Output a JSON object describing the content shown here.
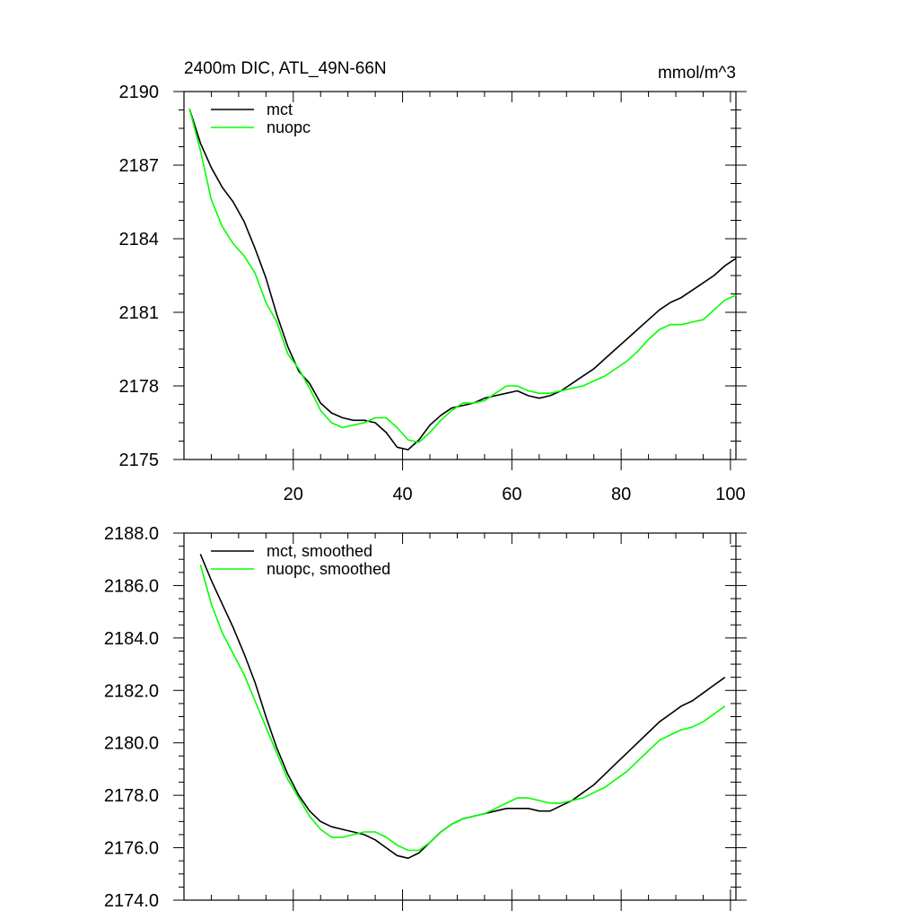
{
  "chart_data": [
    {
      "type": "line",
      "title": "2400m DIC, ATL_49N-66N",
      "units": "mmol/m^3",
      "xlim": [
        0,
        101
      ],
      "ylim": [
        2175,
        2190
      ],
      "xticks": [
        20,
        40,
        60,
        80,
        100
      ],
      "yticks": [
        2175,
        2178,
        2181,
        2184,
        2187,
        2190
      ],
      "ytick_labels": [
        "2175",
        "2178",
        "2181",
        "2184",
        "2187",
        "2190"
      ],
      "legend_position": "top-left",
      "series": [
        {
          "name": "mct",
          "color": "#000000",
          "x": [
            1,
            3,
            5,
            7,
            9,
            11,
            13,
            15,
            17,
            19,
            21,
            23,
            25,
            27,
            29,
            31,
            33,
            35,
            37,
            39,
            41,
            43,
            45,
            47,
            49,
            51,
            53,
            55,
            57,
            59,
            61,
            63,
            65,
            67,
            69,
            71,
            73,
            75,
            77,
            79,
            81,
            83,
            85,
            87,
            89,
            91,
            93,
            95,
            97,
            99,
            101
          ],
          "y": [
            2189.3,
            2187.9,
            2186.9,
            2186.1,
            2185.5,
            2184.7,
            2183.6,
            2182.4,
            2180.9,
            2179.6,
            2178.6,
            2178.1,
            2177.3,
            2176.9,
            2176.7,
            2176.6,
            2176.6,
            2176.5,
            2176.1,
            2175.5,
            2175.4,
            2175.8,
            2176.4,
            2176.8,
            2177.1,
            2177.2,
            2177.3,
            2177.5,
            2177.6,
            2177.7,
            2177.8,
            2177.6,
            2177.5,
            2177.6,
            2177.8,
            2178.1,
            2178.4,
            2178.7,
            2179.1,
            2179.5,
            2179.9,
            2180.3,
            2180.7,
            2181.1,
            2181.4,
            2181.6,
            2181.9,
            2182.2,
            2182.5,
            2182.9,
            2183.2
          ]
        },
        {
          "name": "nuopc",
          "color": "#00ff00",
          "x": [
            1,
            3,
            5,
            7,
            9,
            11,
            13,
            15,
            17,
            19,
            21,
            23,
            25,
            27,
            29,
            31,
            33,
            35,
            37,
            39,
            41,
            43,
            45,
            47,
            49,
            51,
            53,
            55,
            57,
            59,
            61,
            63,
            65,
            67,
            69,
            71,
            73,
            75,
            77,
            79,
            81,
            83,
            85,
            87,
            89,
            91,
            93,
            95,
            97,
            99,
            101
          ],
          "y": [
            2189.3,
            2187.6,
            2185.6,
            2184.5,
            2183.8,
            2183.3,
            2182.6,
            2181.4,
            2180.6,
            2179.3,
            2178.7,
            2177.9,
            2177.0,
            2176.5,
            2176.3,
            2176.4,
            2176.5,
            2176.7,
            2176.7,
            2176.3,
            2175.8,
            2175.7,
            2176.1,
            2176.6,
            2177.0,
            2177.3,
            2177.3,
            2177.4,
            2177.7,
            2178.0,
            2178.0,
            2177.8,
            2177.7,
            2177.7,
            2177.8,
            2177.9,
            2178.0,
            2178.2,
            2178.4,
            2178.7,
            2179.0,
            2179.4,
            2179.9,
            2180.3,
            2180.5,
            2180.5,
            2180.6,
            2180.7,
            2181.1,
            2181.5,
            2181.7
          ]
        }
      ]
    },
    {
      "type": "line",
      "title": "",
      "xlim": [
        0,
        101
      ],
      "ylim": [
        2174,
        2188
      ],
      "xticks": [
        20,
        40,
        60,
        80,
        100
      ],
      "yticks": [
        2174,
        2176,
        2178,
        2180,
        2182,
        2184,
        2186,
        2188
      ],
      "ytick_labels": [
        "2174.0",
        "2176.0",
        "2178.0",
        "2180.0",
        "2182.0",
        "2184.0",
        "2186.0",
        "2188.0"
      ],
      "legend_position": "top-left",
      "series": [
        {
          "name": "mct, smoothed",
          "color": "#000000",
          "x": [
            3,
            5,
            7,
            9,
            11,
            13,
            15,
            17,
            19,
            21,
            23,
            25,
            27,
            29,
            31,
            33,
            35,
            37,
            39,
            41,
            43,
            45,
            47,
            49,
            51,
            53,
            55,
            57,
            59,
            61,
            63,
            65,
            67,
            69,
            71,
            73,
            75,
            77,
            79,
            81,
            83,
            85,
            87,
            89,
            91,
            93,
            95,
            97,
            99
          ],
          "y": [
            2187.2,
            2186.2,
            2185.3,
            2184.4,
            2183.4,
            2182.3,
            2181.0,
            2179.8,
            2178.8,
            2178.0,
            2177.4,
            2177.0,
            2176.8,
            2176.7,
            2176.6,
            2176.5,
            2176.3,
            2176.0,
            2175.7,
            2175.6,
            2175.8,
            2176.2,
            2176.6,
            2176.9,
            2177.1,
            2177.2,
            2177.3,
            2177.4,
            2177.5,
            2177.5,
            2177.5,
            2177.4,
            2177.4,
            2177.6,
            2177.8,
            2178.1,
            2178.4,
            2178.8,
            2179.2,
            2179.6,
            2180.0,
            2180.4,
            2180.8,
            2181.1,
            2181.4,
            2181.6,
            2181.9,
            2182.2,
            2182.5
          ]
        },
        {
          "name": "nuopc, smoothed",
          "color": "#00ff00",
          "x": [
            3,
            5,
            7,
            9,
            11,
            13,
            15,
            17,
            19,
            21,
            23,
            25,
            27,
            29,
            31,
            33,
            35,
            37,
            39,
            41,
            43,
            45,
            47,
            49,
            51,
            53,
            55,
            57,
            59,
            61,
            63,
            65,
            67,
            69,
            71,
            73,
            75,
            77,
            79,
            81,
            83,
            85,
            87,
            89,
            91,
            93,
            95,
            97,
            99
          ],
          "y": [
            2186.8,
            2185.3,
            2184.2,
            2183.4,
            2182.6,
            2181.6,
            2180.6,
            2179.6,
            2178.6,
            2177.9,
            2177.2,
            2176.7,
            2176.4,
            2176.4,
            2176.5,
            2176.6,
            2176.6,
            2176.4,
            2176.1,
            2175.9,
            2175.9,
            2176.2,
            2176.6,
            2176.9,
            2177.1,
            2177.2,
            2177.3,
            2177.5,
            2177.7,
            2177.9,
            2177.9,
            2177.8,
            2177.7,
            2177.7,
            2177.8,
            2177.9,
            2178.1,
            2178.3,
            2178.6,
            2178.9,
            2179.3,
            2179.7,
            2180.1,
            2180.3,
            2180.5,
            2180.6,
            2180.8,
            2181.1,
            2181.4
          ]
        }
      ]
    }
  ]
}
